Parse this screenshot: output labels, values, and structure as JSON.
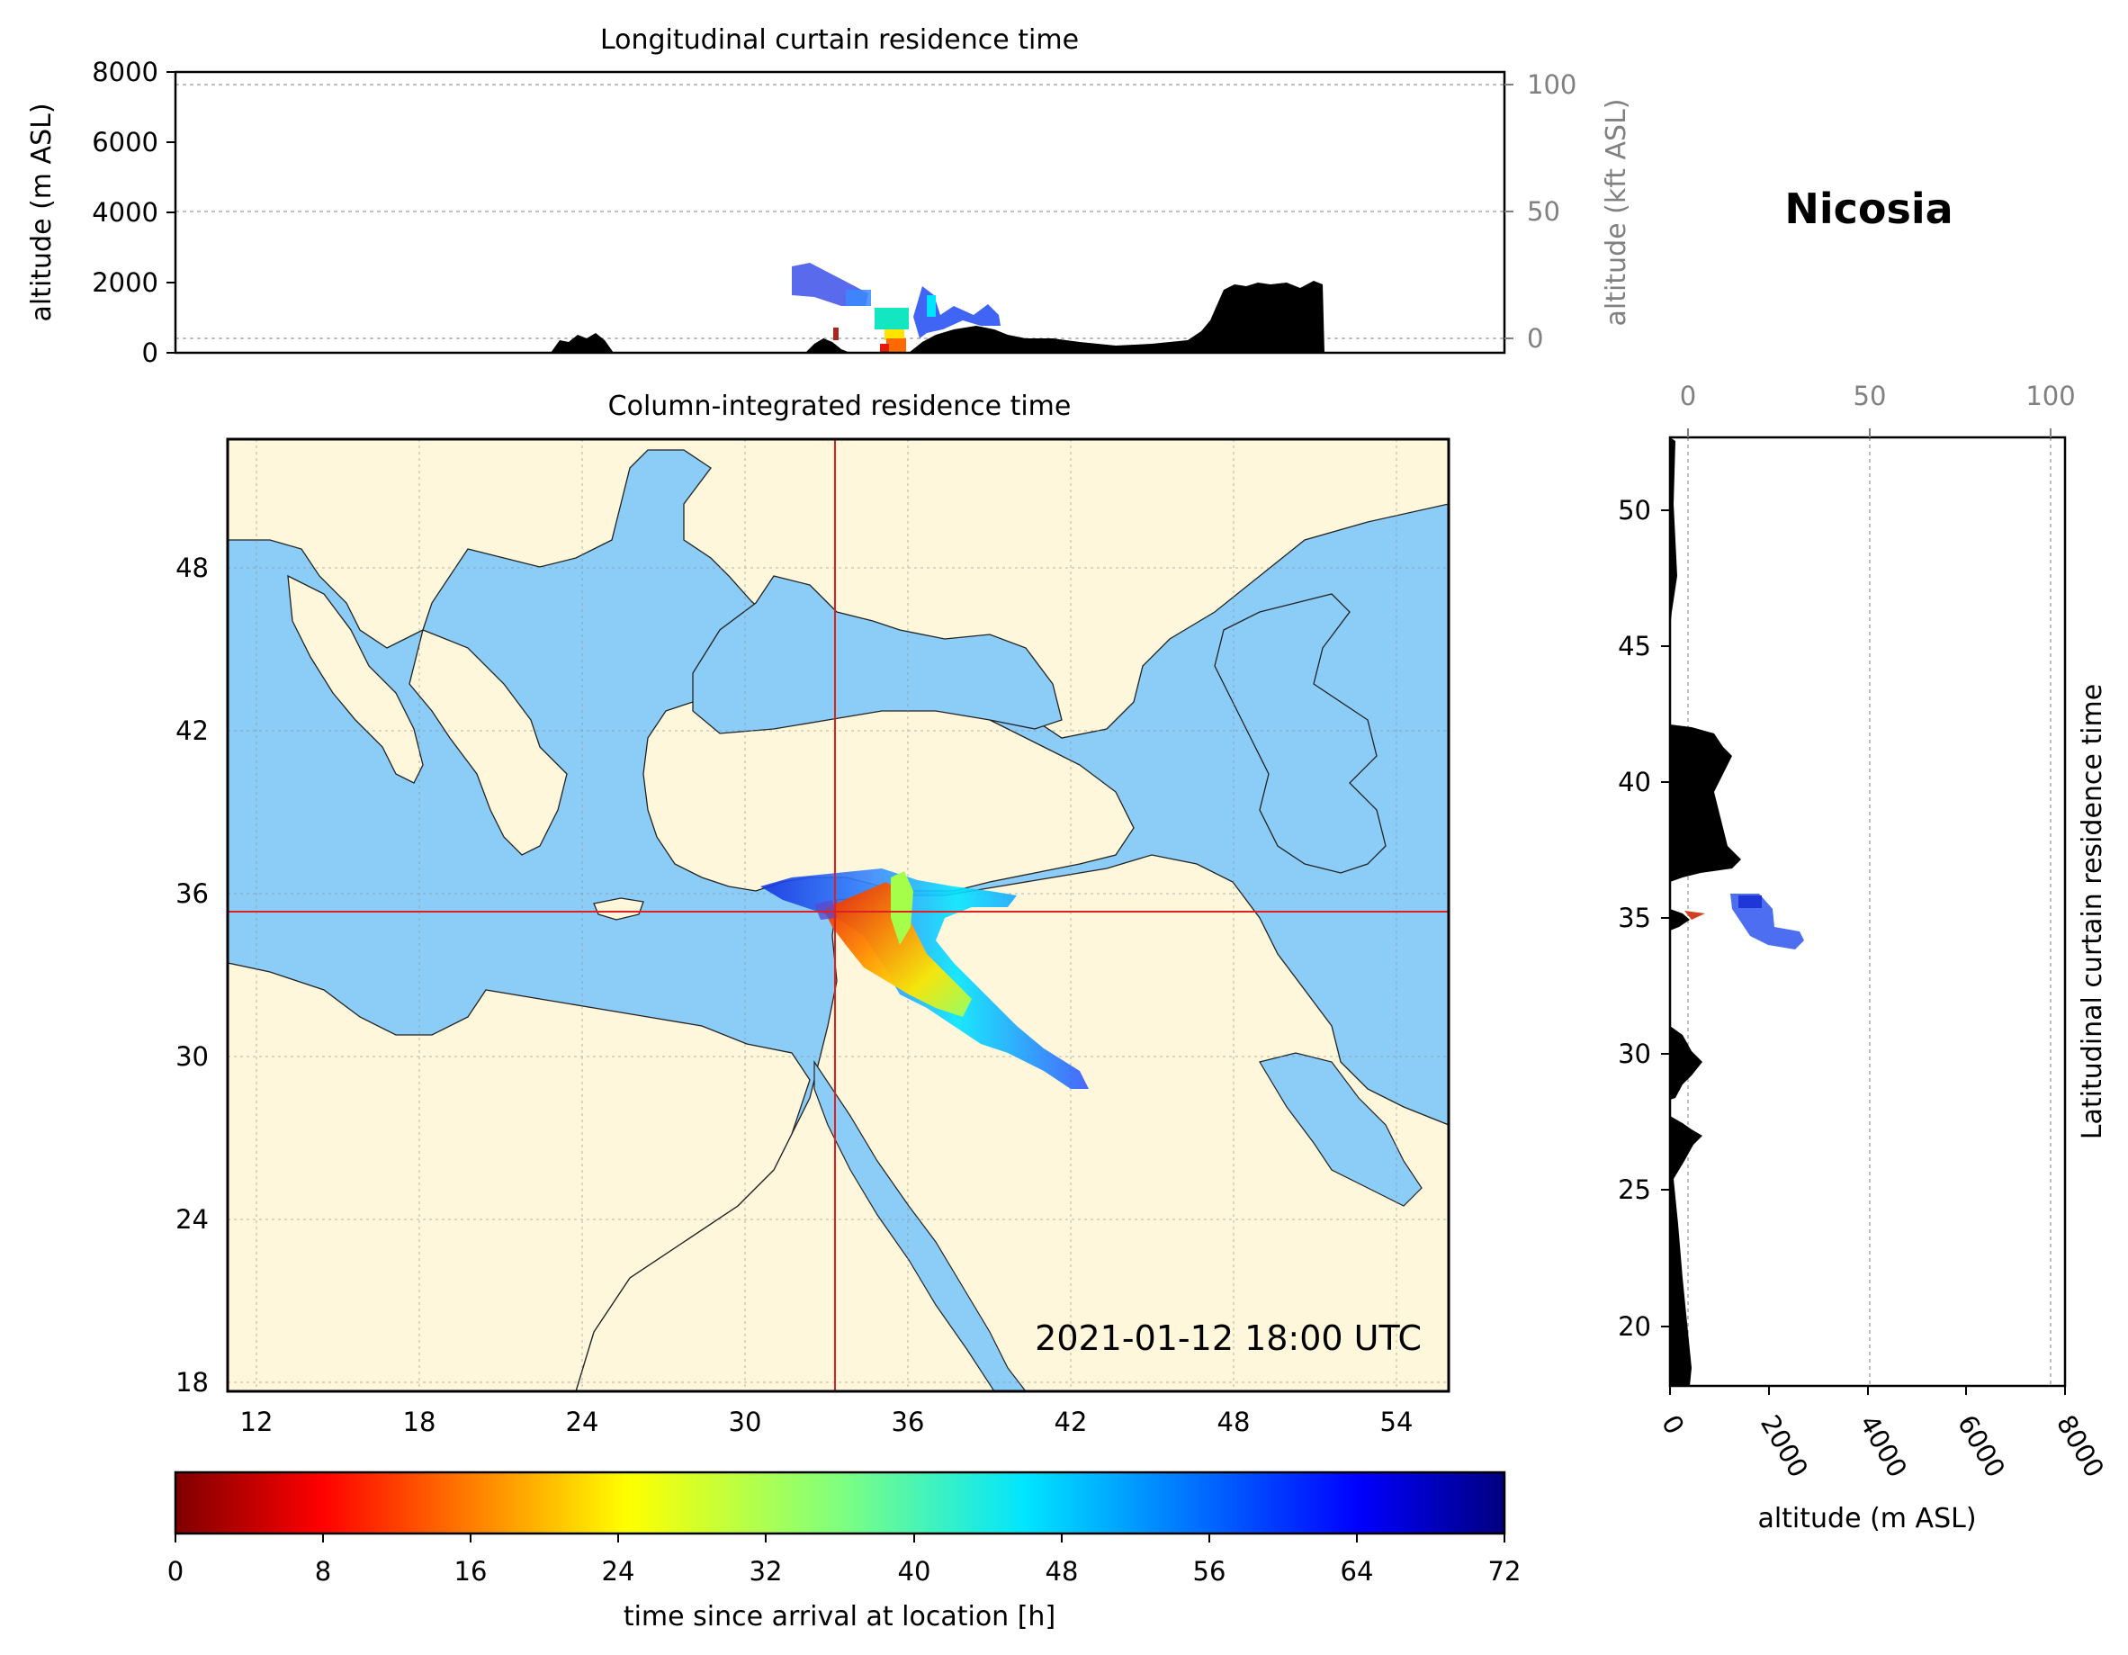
{
  "station": "Nicosia",
  "timestamp": "2021-01-12 18:00 UTC",
  "colors": {
    "ocean": "#8ccdf8",
    "land": "#fff7dc",
    "marker": "#e02020",
    "terrain": "#000000"
  },
  "top_panel": {
    "title": "Longitudinal curtain residence time",
    "ylabel": "altitude (m ASL)",
    "ylabel_right": "altitude (kft ASL)",
    "yticks": [
      "0",
      "2000",
      "4000",
      "6000",
      "8000"
    ],
    "yticks_right": [
      "0",
      "50",
      "100"
    ]
  },
  "map_panel": {
    "title": "Column-integrated residence time",
    "lon_ticks": [
      "12",
      "18",
      "24",
      "30",
      "36",
      "42",
      "48",
      "54"
    ],
    "lat_ticks": [
      "18",
      "24",
      "30",
      "36",
      "42",
      "48"
    ],
    "lon_range": [
      10.9,
      55.9
    ],
    "lat_range": [
      17.9,
      52.9
    ],
    "site": {
      "lon": 33.4,
      "lat": 35.2
    }
  },
  "right_panel": {
    "ylabel": "Latitudinal curtain residence time",
    "xlabel": "altitude (m ASL)",
    "lat_ticks": [
      "20",
      "25",
      "30",
      "35",
      "40",
      "45",
      "50"
    ],
    "xticks": [
      "0",
      "2000",
      "4000",
      "6000",
      "8000"
    ],
    "xticks_top": [
      "0",
      "50",
      "100"
    ]
  },
  "colorbar": {
    "label": "time since arrival at location [h]",
    "ticks": [
      "0",
      "8",
      "16",
      "24",
      "32",
      "40",
      "48",
      "56",
      "64",
      "72"
    ],
    "range": [
      0,
      72
    ],
    "colormap": "jet"
  }
}
